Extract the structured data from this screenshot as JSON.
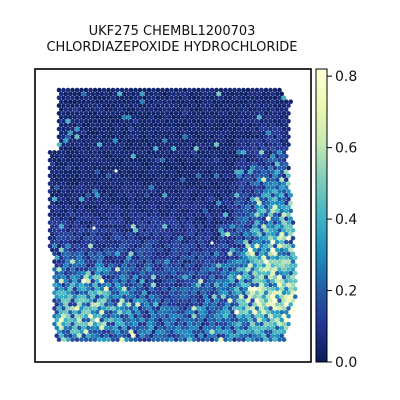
{
  "chart_data": {
    "type": "heatmap",
    "subtype": "hexagonal spatial spot map",
    "title_line1": "UKF275 CHEMBL1200703",
    "title_line2": "CHLORDIAZEPOXIDE HYDROCHLORIDE",
    "xlabel": "",
    "ylabel": "",
    "axes_ticks": false,
    "grid": false,
    "colormap": "YlGnBu_r",
    "colormap_stops": [
      "#081d58",
      "#253494",
      "#225ea8",
      "#1d91c0",
      "#41b6c4",
      "#7fcdbb",
      "#c7e9b4",
      "#edf8b1",
      "#ffffd9"
    ],
    "colorbar": {
      "position": "right",
      "range": [
        0.0,
        0.82
      ],
      "ticks": [
        0.0,
        0.2,
        0.4,
        0.6,
        0.8
      ],
      "tick_labels": [
        "0.0",
        "0.2",
        "0.4",
        "0.6",
        "0.8"
      ]
    },
    "value_pattern": {
      "background_level": 0.05,
      "high_regions": [
        "right-center",
        "bottom-left",
        "bottom-right"
      ],
      "max_value": 0.82
    }
  }
}
